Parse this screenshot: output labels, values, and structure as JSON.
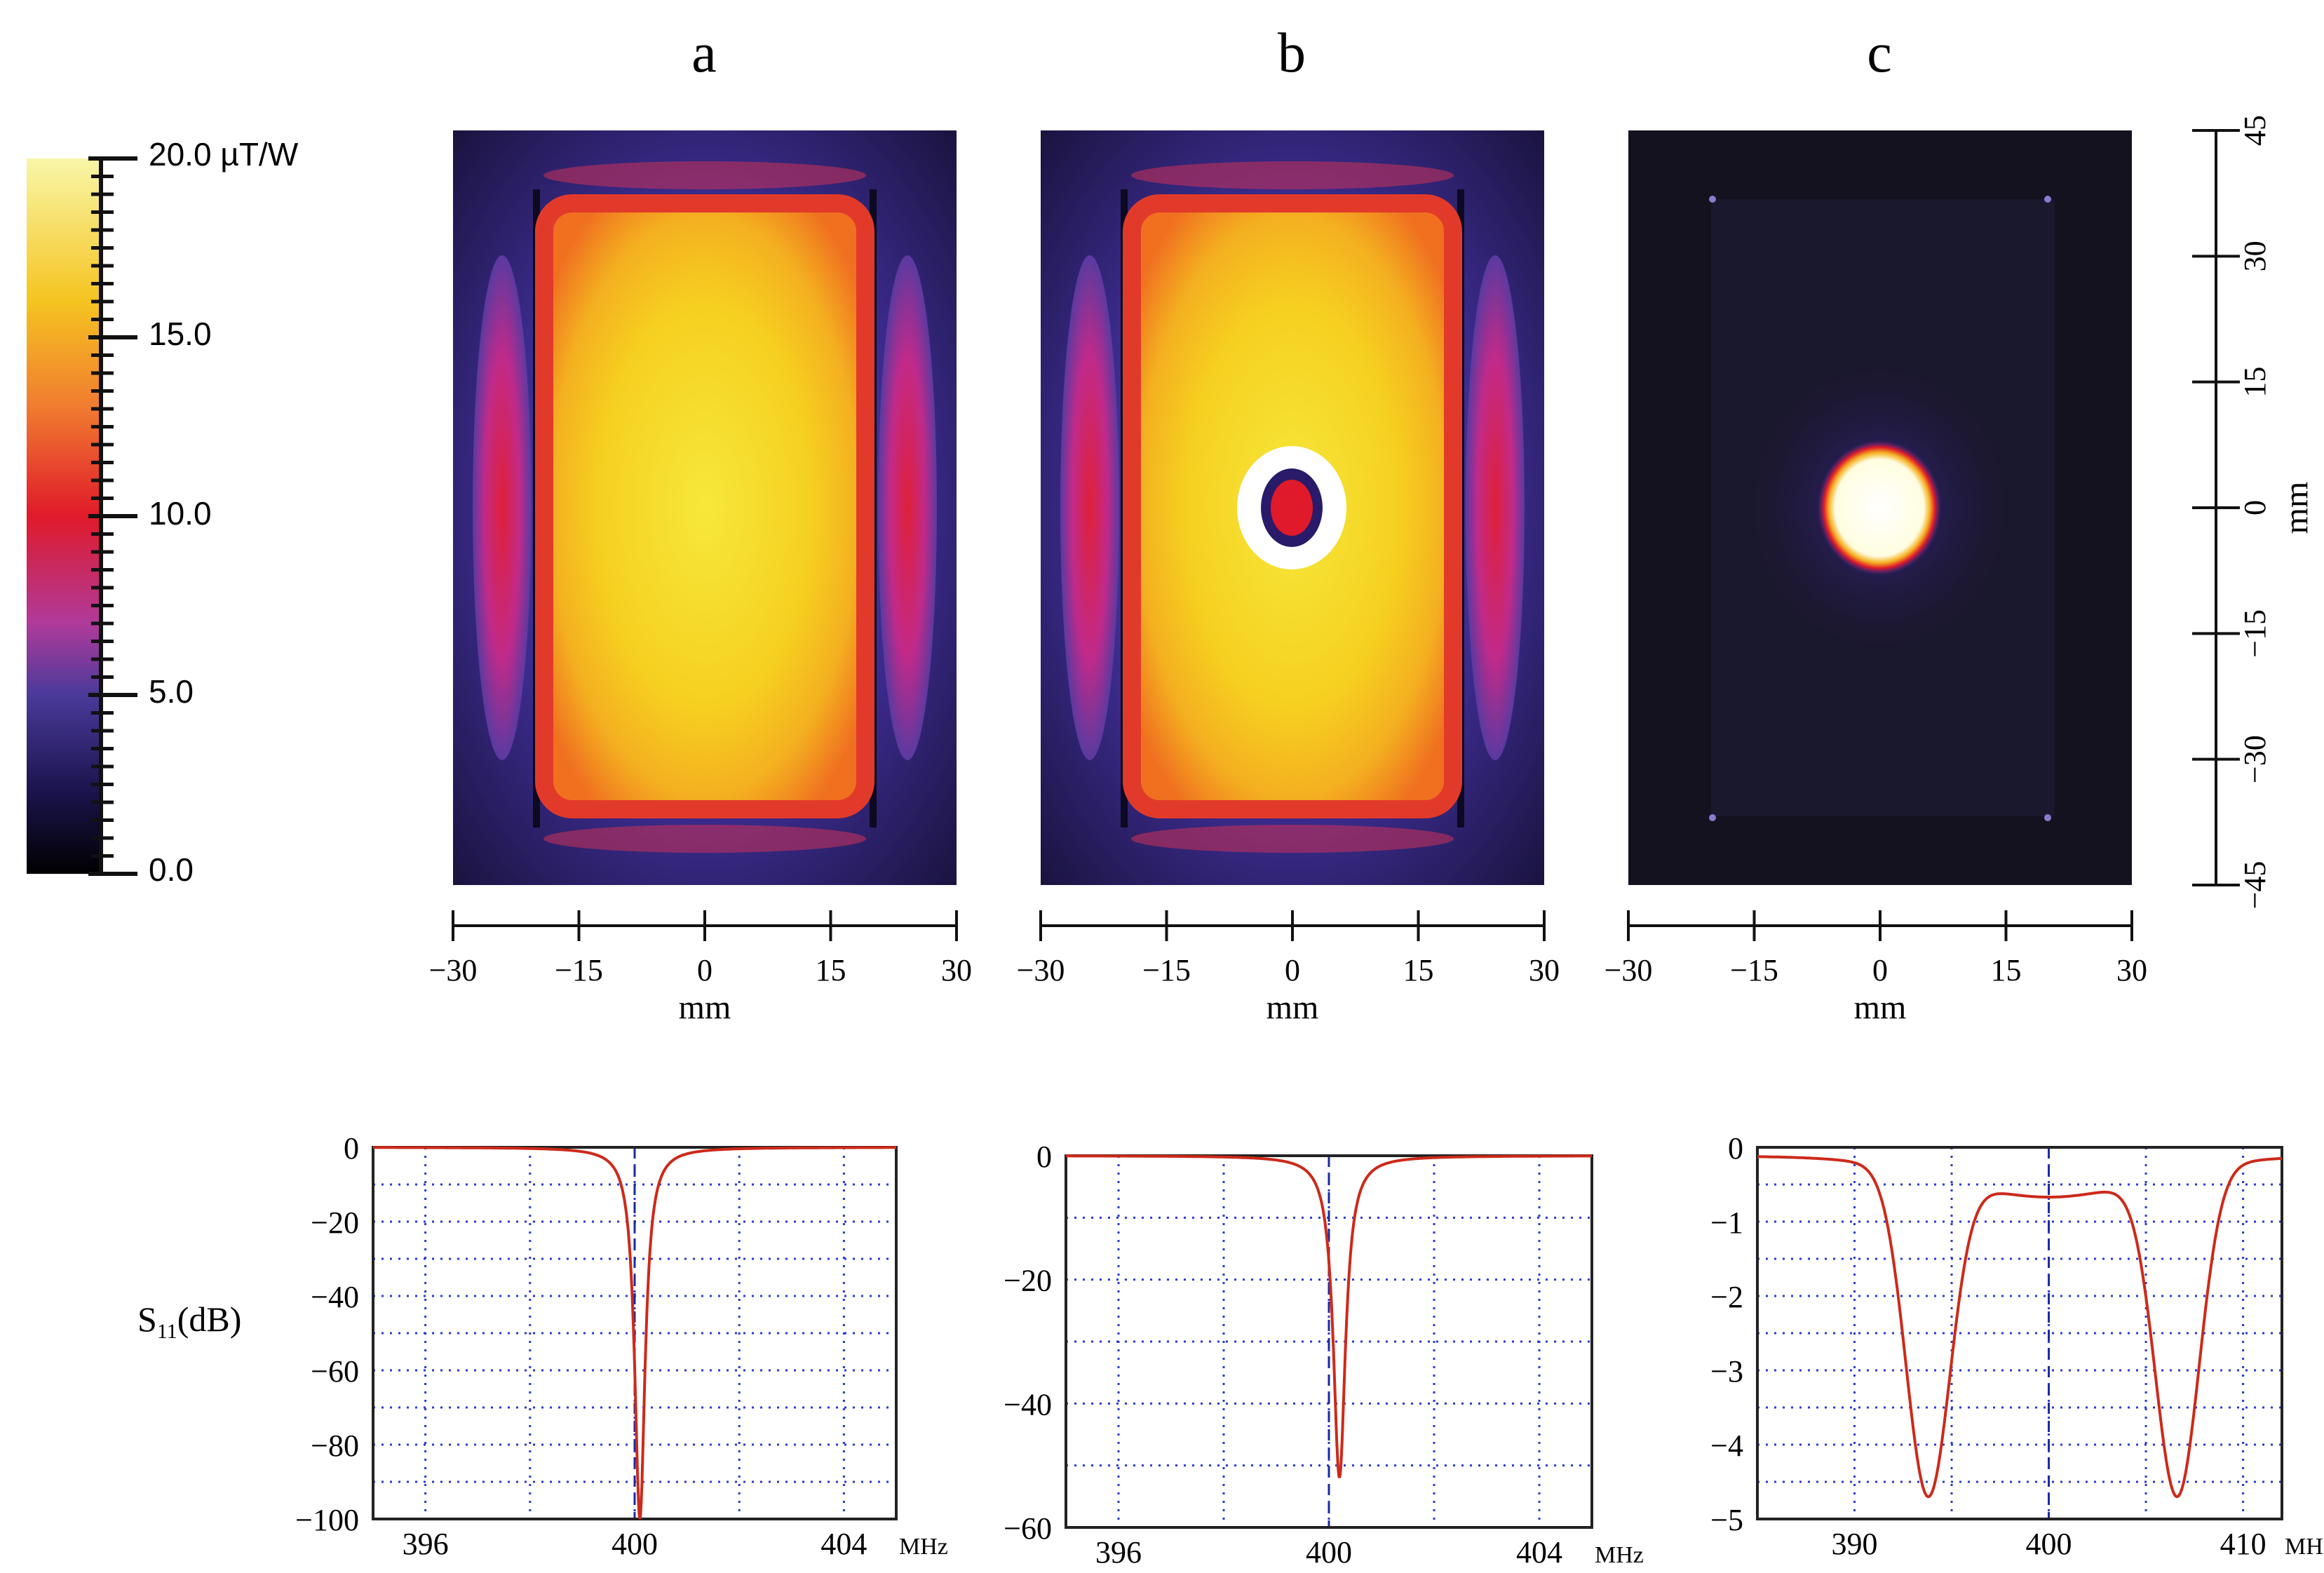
{
  "panel_labels": [
    "a",
    "b",
    "c"
  ],
  "colorbar": {
    "labels": [
      "20.0 µT/W",
      "15.0",
      "10.0",
      "5.0",
      "0.0"
    ],
    "min": 0,
    "max": 20,
    "unit": "µT/W",
    "colors": [
      "#000000",
      "#2a1a6e",
      "#c23a9a",
      "#e01a2a",
      "#f07a20",
      "#f5c020",
      "#f8f8a0"
    ]
  },
  "maps": {
    "x_ticks": [
      "−30",
      "−15",
      "0",
      "15",
      "30"
    ],
    "x_unit": "mm",
    "y_ticks": [
      "45",
      "30",
      "15",
      "0",
      "−15",
      "−30",
      "−45"
    ],
    "y_unit": "mm"
  },
  "s11": {
    "ylabel_main": "S",
    "ylabel_sub": "11",
    "ylabel_rest": "(dB)",
    "x_unit": "MHz"
  },
  "chart_data": [
    {
      "type": "heatmap",
      "panel": "a",
      "description_values": "B1 field magnitude map, rectangular coil, uniform high field inside",
      "xlim": [
        -30,
        30
      ],
      "ylim": [
        -45,
        45
      ],
      "zlim": [
        0,
        20
      ]
    },
    {
      "type": "heatmap",
      "panel": "b",
      "xlim": [
        -30,
        30
      ],
      "ylim": [
        -45,
        45
      ],
      "zlim": [
        0,
        20
      ]
    },
    {
      "type": "heatmap",
      "panel": "c",
      "xlim": [
        -30,
        30
      ],
      "ylim": [
        -45,
        45
      ],
      "zlim": [
        0,
        20
      ]
    },
    {
      "type": "line",
      "panel": "a",
      "x_ticks": [
        "396",
        "400",
        "404"
      ],
      "y_ticks": [
        "0",
        "−20",
        "−40",
        "−60",
        "−80",
        "−100"
      ],
      "xlim": [
        395,
        405
      ],
      "ylim": [
        -100,
        0
      ],
      "marker_x": 400,
      "resonance": {
        "f0": 400.1,
        "depth": -100,
        "width": 0.12
      },
      "color": "#cc2a1a"
    },
    {
      "type": "line",
      "panel": "b",
      "x_ticks": [
        "396",
        "400",
        "404"
      ],
      "y_ticks": [
        "0",
        "−20",
        "−40",
        "−60"
      ],
      "xlim": [
        395,
        405
      ],
      "ylim": [
        -60,
        0
      ],
      "marker_x": 400,
      "resonance": {
        "f0": 400.2,
        "depth": -52,
        "width": 0.14
      },
      "color": "#cc2a1a"
    },
    {
      "type": "line",
      "panel": "c",
      "x_ticks": [
        "390",
        "400",
        "410"
      ],
      "y_ticks": [
        "0",
        "−1",
        "−2",
        "−3",
        "−4",
        "−5"
      ],
      "xlim": [
        385,
        412
      ],
      "ylim": [
        -5,
        0
      ],
      "marker_x": 400,
      "resonances": [
        {
          "f0": 393.8,
          "depth": -4.7
        },
        {
          "f0": 406.6,
          "depth": -4.7
        }
      ],
      "color": "#cc2a1a"
    }
  ]
}
